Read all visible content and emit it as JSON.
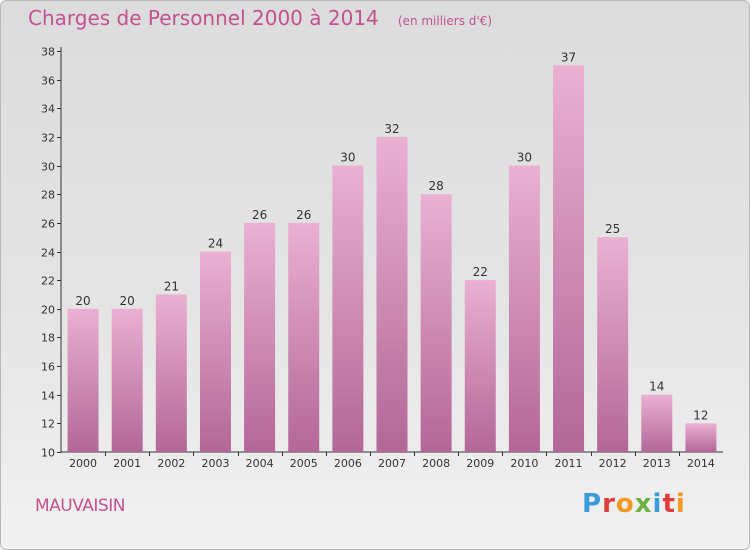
{
  "header": {
    "title": "Charges de Personnel 2000 à 2014",
    "subtitle": "(en milliers d'€)"
  },
  "footer": {
    "commune": "MAUVAISIN",
    "logo_text": "Proxiti",
    "logo_colors": [
      "#3a9bd9",
      "#e23c3c",
      "#f29a1f",
      "#6cb33f",
      "#3a9bd9",
      "#e23c3c",
      "#f29a1f"
    ]
  },
  "colors": {
    "bar_light": "#eab0d2",
    "bar_dark": "#b36798",
    "text_accent": "#c2528f"
  },
  "chart_data": {
    "type": "bar",
    "categories": [
      "2000",
      "2001",
      "2002",
      "2003",
      "2004",
      "2005",
      "2006",
      "2007",
      "2008",
      "2009",
      "2010",
      "2011",
      "2012",
      "2013",
      "2014"
    ],
    "values": [
      20,
      20,
      21,
      24,
      26,
      26,
      30,
      32,
      28,
      22,
      30,
      37,
      25,
      14,
      12
    ],
    "ylim": [
      10,
      38
    ],
    "yticks": [
      10,
      12,
      14,
      16,
      18,
      20,
      22,
      24,
      26,
      28,
      30,
      32,
      34,
      36,
      38
    ],
    "grid": false,
    "title": "Charges de Personnel 2000 à 2014",
    "subtitle": "(en milliers d'€)"
  }
}
